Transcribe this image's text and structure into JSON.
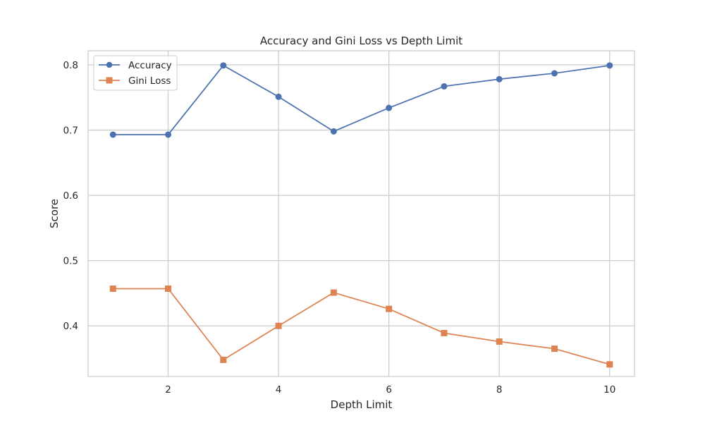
{
  "chart_data": {
    "type": "line",
    "title": "Accuracy and Gini Loss vs Depth Limit",
    "xlabel": "Depth Limit",
    "ylabel": "Score",
    "x": [
      1,
      2,
      3,
      4,
      5,
      6,
      7,
      8,
      9,
      10
    ],
    "xlim": [
      0.55,
      10.45
    ],
    "ylim": [
      0.3225,
      0.8215
    ],
    "x_ticks": [
      2,
      4,
      6,
      8,
      10
    ],
    "y_ticks": [
      0.4,
      0.5,
      0.6,
      0.7,
      0.8
    ],
    "x_tick_labels": [
      "2",
      "4",
      "6",
      "8",
      "10"
    ],
    "y_tick_labels": [
      "0.4",
      "0.5",
      "0.6",
      "0.7",
      "0.8"
    ],
    "grid": true,
    "legend_position": "upper-left",
    "series": [
      {
        "name": "Accuracy",
        "color": "#4c72b0",
        "marker": "circle",
        "values": [
          0.693,
          0.693,
          0.799,
          0.751,
          0.698,
          0.734,
          0.767,
          0.778,
          0.787,
          0.799
        ]
      },
      {
        "name": "Gini Loss",
        "color": "#dd8452",
        "marker": "square",
        "values": [
          0.457,
          0.457,
          0.348,
          0.4,
          0.451,
          0.426,
          0.389,
          0.376,
          0.365,
          0.341
        ]
      }
    ]
  }
}
